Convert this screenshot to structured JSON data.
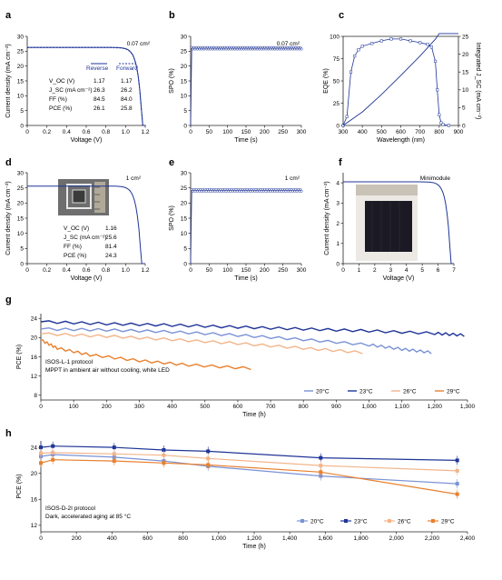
{
  "chart_data": [
    {
      "panel": "a",
      "type": "line",
      "annotation": "0.07 cm²",
      "xlabel": "Voltage (V)",
      "ylabel": "Current density (mA cm⁻²)",
      "xlim": [
        0,
        1.2
      ],
      "ylim": [
        0,
        30
      ],
      "xticks": [
        "0",
        "0.2",
        "0.4",
        "0.6",
        "0.8",
        "1.0",
        "1.2"
      ],
      "yticks": [
        "0",
        "5",
        "10",
        "15",
        "20",
        "25",
        "30"
      ],
      "legend": [
        "Reverse",
        "Forward"
      ],
      "table": {
        "rows": [
          {
            "param": "V_OC (V)",
            "reverse": "1.17",
            "forward": "1.17"
          },
          {
            "param": "J_SC (mA cm⁻²)",
            "reverse": "26.3",
            "forward": "26.2"
          },
          {
            "param": "FF (%)",
            "reverse": "84.5",
            "forward": "84.0"
          },
          {
            "param": "PCE (%)",
            "reverse": "26.1",
            "forward": "25.8"
          }
        ]
      },
      "series": [
        {
          "name": "Reverse",
          "jsc": 26.3,
          "voc": 1.17
        },
        {
          "name": "Forward",
          "jsc": 26.2,
          "voc": 1.17
        }
      ]
    },
    {
      "panel": "b",
      "type": "line",
      "annotation": "0.07 cm²",
      "xlabel": "Time (s)",
      "ylabel": "SPO (%)",
      "xlim": [
        0,
        300
      ],
      "ylim": [
        0,
        30
      ],
      "xticks": [
        "0",
        "50",
        "100",
        "150",
        "200",
        "250",
        "300"
      ],
      "yticks": [
        "0",
        "5",
        "10",
        "15",
        "20",
        "25",
        "30"
      ],
      "series": [
        {
          "steady": 26.0
        }
      ]
    },
    {
      "panel": "c",
      "type": "line",
      "xlabel": "Wavelength (nm)",
      "ylabel": "EQE (%)",
      "y2label": "Integrated J_SC (mA cm⁻²)",
      "xlim": [
        300,
        900
      ],
      "ylim": [
        0,
        100
      ],
      "y2lim": [
        0,
        25
      ],
      "xticks": [
        "300",
        "400",
        "500",
        "600",
        "700",
        "800",
        "900"
      ],
      "yticks": [
        "0",
        "25",
        "50",
        "75",
        "100"
      ],
      "y2ticks": [
        "0",
        "5",
        "10",
        "15",
        "20",
        "25"
      ],
      "series": [
        {
          "x": [
            300,
            320,
            340,
            360,
            380,
            400,
            450,
            500,
            550,
            600,
            650,
            700,
            740,
            760,
            780,
            790,
            800,
            810,
            820,
            850
          ],
          "y": [
            0,
            10,
            60,
            78,
            85,
            89,
            92,
            95,
            97,
            97,
            95,
            93,
            91,
            88,
            72,
            40,
            12,
            3,
            1,
            0
          ]
        },
        {
          "x": [
            300,
            400,
            500,
            600,
            700,
            780,
            800,
            900
          ],
          "y": [
            0,
            3.8,
            8.7,
            14.0,
            19.5,
            24.2,
            25.8,
            25.8
          ]
        }
      ]
    },
    {
      "panel": "d",
      "type": "line",
      "annotation": "1 cm²",
      "xlabel": "Voltage (V)",
      "ylabel": "Current density (mA cm⁻²)",
      "xlim": [
        0,
        1.2
      ],
      "ylim": [
        0,
        30
      ],
      "xticks": [
        "0",
        "0.2",
        "0.4",
        "0.6",
        "0.8",
        "1.0",
        "1.2"
      ],
      "yticks": [
        "0",
        "5",
        "10",
        "15",
        "20",
        "25",
        "30"
      ],
      "table": {
        "rows": [
          {
            "param": "V_OC (V)",
            "value": "1.16"
          },
          {
            "param": "J_SC (mA cm⁻²)",
            "value": "25.6"
          },
          {
            "param": "FF (%)",
            "value": "81.4"
          },
          {
            "param": "PCE (%)",
            "value": "24.3"
          }
        ]
      },
      "series": [
        {
          "jsc": 25.6,
          "voc": 1.16
        }
      ]
    },
    {
      "panel": "e",
      "type": "line",
      "annotation": "1 cm²",
      "xlabel": "Time (s)",
      "ylabel": "SPO (%)",
      "xlim": [
        0,
        300
      ],
      "ylim": [
        0,
        30
      ],
      "xticks": [
        "0",
        "50",
        "100",
        "150",
        "200",
        "250",
        "300"
      ],
      "yticks": [
        "0",
        "5",
        "10",
        "15",
        "20",
        "25",
        "30"
      ],
      "series": [
        {
          "steady": 24.2
        }
      ]
    },
    {
      "panel": "f",
      "type": "line",
      "annotation": "Minimodule",
      "xlabel": "Voltage (V)",
      "ylabel": "Current density (mA cm⁻²)",
      "xlim": [
        0,
        7
      ],
      "ylim": [
        0,
        4.5
      ],
      "xticks": [
        "0",
        "1",
        "2",
        "3",
        "4",
        "5",
        "6",
        "7"
      ],
      "yticks": [
        "0",
        "1",
        "2",
        "3",
        "4"
      ],
      "series": [
        {
          "jsc": 4.05,
          "voc": 6.8
        }
      ]
    },
    {
      "panel": "g",
      "type": "line",
      "xlabel": "Time (h)",
      "ylabel": "PCE (%)",
      "xlim": [
        0,
        1300
      ],
      "ylim": [
        7,
        25
      ],
      "xticks": [
        "0",
        "100",
        "200",
        "300",
        "400",
        "500",
        "600",
        "700",
        "800",
        "900",
        "1,000",
        "1,100",
        "1,200",
        "1,300"
      ],
      "yticks": [
        "8",
        "12",
        "16",
        "20",
        "24"
      ],
      "annotation": [
        "ISOS-L-1 protocol",
        "MPPT in ambient air without cooling, white LED"
      ],
      "series": [
        {
          "name": "20°C",
          "color": "#7a92d6",
          "x": [
            0,
            200,
            400,
            600,
            800,
            1000,
            1100,
            1190
          ],
          "y": [
            21.8,
            21.6,
            21.2,
            20.5,
            19.6,
            18.5,
            17.6,
            16.9
          ]
        },
        {
          "name": "23°C",
          "color": "#1f3597",
          "x": [
            0,
            200,
            400,
            600,
            800,
            1000,
            1200,
            1290
          ],
          "y": [
            23.3,
            22.9,
            22.6,
            22.2,
            21.8,
            21.4,
            20.9,
            20.5
          ]
        },
        {
          "name": "26°C",
          "color": "#f2b48a",
          "x": [
            0,
            200,
            400,
            600,
            800,
            980
          ],
          "y": [
            20.8,
            20.3,
            19.6,
            18.8,
            17.8,
            16.9
          ]
        },
        {
          "name": "29°C",
          "color": "#e8802e",
          "x": [
            0,
            50,
            150,
            300,
            450,
            640
          ],
          "y": [
            19.5,
            17.8,
            16.4,
            15.2,
            14.3,
            13.6
          ]
        }
      ]
    },
    {
      "panel": "h",
      "type": "line",
      "xlabel": "Time (h)",
      "ylabel": "PCE (%)",
      "xlim": [
        0,
        2500
      ],
      "ylim": [
        11,
        25
      ],
      "xticks": [
        "0",
        "200",
        "400",
        "600",
        "800",
        "1,000",
        "1,200",
        "1,400",
        "1,600",
        "1,800",
        "2,000",
        "2,200",
        "2,400"
      ],
      "yticks": [
        "12",
        "16",
        "20",
        "24"
      ],
      "annotation": [
        "ISOS-D-2I protocol",
        "Dark, accelerated aging at 85 °C"
      ],
      "series": [
        {
          "name": "20°C",
          "color": "#7a92d6",
          "x": [
            0,
            70,
            430,
            720,
            980,
            1640,
            2440
          ],
          "y": [
            22.6,
            22.9,
            22.5,
            21.9,
            21.1,
            19.6,
            18.4
          ]
        },
        {
          "name": "23°C",
          "color": "#1f3597",
          "x": [
            0,
            70,
            430,
            720,
            980,
            1640,
            2440
          ],
          "y": [
            24.0,
            24.2,
            24.0,
            23.6,
            23.4,
            22.4,
            22.0
          ]
        },
        {
          "name": "26°C",
          "color": "#f2b48a",
          "x": [
            0,
            70,
            430,
            720,
            980,
            1640,
            2440
          ],
          "y": [
            23.1,
            23.2,
            23.0,
            22.8,
            22.3,
            21.2,
            20.4
          ]
        },
        {
          "name": "29°C",
          "color": "#e8802e",
          "x": [
            0,
            70,
            430,
            720,
            980,
            1640,
            2440
          ],
          "y": [
            21.6,
            22.1,
            21.9,
            21.6,
            21.3,
            20.2,
            16.8
          ]
        }
      ]
    }
  ]
}
